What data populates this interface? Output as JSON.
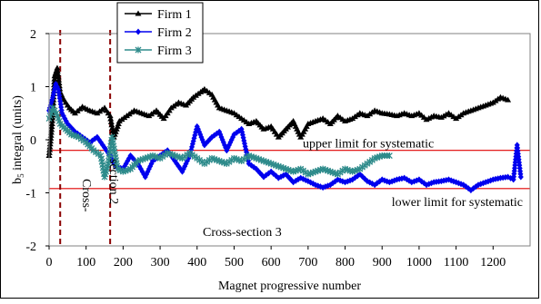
{
  "chart_data": {
    "type": "line",
    "xlabel": "Magnet progressive number",
    "ylabel": "b",
    "ylabel_sub": "5",
    "ylabel_rest": " integral (units)",
    "xlim": [
      0,
      1300
    ],
    "ylim": [
      -2,
      2
    ],
    "xticks": [
      0,
      100,
      200,
      300,
      400,
      500,
      600,
      700,
      800,
      900,
      1000,
      1100,
      1200
    ],
    "yticks": [
      -2,
      -1,
      0,
      1,
      2
    ],
    "legend": "top-left",
    "grid": false,
    "hlines": [
      {
        "label": "upper limit for systematic",
        "value": -0.2,
        "color": "#e00000"
      },
      {
        "label": "lower limit for systematic",
        "value": -0.92,
        "color": "#e00000"
      }
    ],
    "vlines": [
      {
        "value": 30,
        "color": "#8b0000"
      },
      {
        "value": 165,
        "color": "#8b0000"
      }
    ],
    "annotations": [
      {
        "text": "Cross-",
        "x": 65,
        "y": -0.95
      },
      {
        "text": "section 2",
        "x": 140,
        "y": -1.15
      },
      {
        "text": "Cross-section 3",
        "x": 540,
        "y": -1.6
      }
    ],
    "series": [
      {
        "name": "Firm 1",
        "color": "#000000",
        "marker": "triangle",
        "points": [
          [
            0,
            -0.3
          ],
          [
            8,
            0.3
          ],
          [
            15,
            1.2
          ],
          [
            22,
            1.35
          ],
          [
            30,
            0.9
          ],
          [
            40,
            0.75
          ],
          [
            55,
            0.6
          ],
          [
            70,
            0.5
          ],
          [
            90,
            0.62
          ],
          [
            110,
            0.55
          ],
          [
            130,
            0.5
          ],
          [
            150,
            0.6
          ],
          [
            165,
            0.45
          ],
          [
            175,
            0.05
          ],
          [
            190,
            0.35
          ],
          [
            210,
            0.45
          ],
          [
            230,
            0.55
          ],
          [
            250,
            0.5
          ],
          [
            270,
            0.45
          ],
          [
            290,
            0.55
          ],
          [
            310,
            0.4
          ],
          [
            330,
            0.6
          ],
          [
            350,
            0.7
          ],
          [
            370,
            0.65
          ],
          [
            390,
            0.8
          ],
          [
            410,
            0.9
          ],
          [
            420,
            0.95
          ],
          [
            440,
            0.85
          ],
          [
            460,
            0.6
          ],
          [
            480,
            0.55
          ],
          [
            500,
            0.5
          ],
          [
            520,
            0.4
          ],
          [
            540,
            0.3
          ],
          [
            560,
            0.35
          ],
          [
            580,
            0.2
          ],
          [
            600,
            0.25
          ],
          [
            620,
            0.05
          ],
          [
            640,
            0.2
          ],
          [
            660,
            0.35
          ],
          [
            680,
            0.05
          ],
          [
            700,
            0.3
          ],
          [
            720,
            0.35
          ],
          [
            740,
            0.4
          ],
          [
            760,
            0.3
          ],
          [
            780,
            0.45
          ],
          [
            800,
            0.35
          ],
          [
            820,
            0.4
          ],
          [
            840,
            0.5
          ],
          [
            860,
            0.45
          ],
          [
            880,
            0.55
          ],
          [
            900,
            0.5
          ],
          [
            920,
            0.48
          ],
          [
            940,
            0.45
          ],
          [
            960,
            0.5
          ],
          [
            980,
            0.45
          ],
          [
            1000,
            0.5
          ],
          [
            1020,
            0.38
          ],
          [
            1040,
            0.45
          ],
          [
            1060,
            0.42
          ],
          [
            1080,
            0.5
          ],
          [
            1100,
            0.4
          ],
          [
            1120,
            0.5
          ],
          [
            1140,
            0.55
          ],
          [
            1160,
            0.6
          ],
          [
            1180,
            0.65
          ],
          [
            1200,
            0.7
          ],
          [
            1220,
            0.8
          ],
          [
            1240,
            0.75
          ]
        ]
      },
      {
        "name": "Firm 2",
        "color": "#0000ee",
        "marker": "diamond",
        "points": [
          [
            0,
            0.55
          ],
          [
            10,
            0.8
          ],
          [
            18,
            1.05
          ],
          [
            25,
            0.95
          ],
          [
            35,
            0.5
          ],
          [
            50,
            0.3
          ],
          [
            70,
            0.15
          ],
          [
            90,
            0.05
          ],
          [
            110,
            -0.05
          ],
          [
            130,
            0.05
          ],
          [
            150,
            -0.15
          ],
          [
            165,
            -0.3
          ],
          [
            180,
            -0.5
          ],
          [
            200,
            -0.55
          ],
          [
            220,
            -0.3
          ],
          [
            240,
            -0.45
          ],
          [
            260,
            -0.7
          ],
          [
            280,
            -0.4
          ],
          [
            300,
            -0.3
          ],
          [
            320,
            -0.2
          ],
          [
            340,
            -0.4
          ],
          [
            360,
            -0.6
          ],
          [
            380,
            -0.3
          ],
          [
            400,
            0.25
          ],
          [
            420,
            -0.1
          ],
          [
            440,
            0.05
          ],
          [
            460,
            0.15
          ],
          [
            480,
            -0.2
          ],
          [
            500,
            0.1
          ],
          [
            520,
            0.2
          ],
          [
            540,
            -0.45
          ],
          [
            560,
            -0.55
          ],
          [
            580,
            -0.7
          ],
          [
            600,
            -0.6
          ],
          [
            620,
            -0.72
          ],
          [
            640,
            -0.65
          ],
          [
            660,
            -0.8
          ],
          [
            680,
            -0.72
          ],
          [
            700,
            -0.78
          ],
          [
            720,
            -0.85
          ],
          [
            740,
            -0.9
          ],
          [
            760,
            -0.85
          ],
          [
            780,
            -0.75
          ],
          [
            800,
            -0.8
          ],
          [
            820,
            -0.75
          ],
          [
            840,
            -0.65
          ],
          [
            860,
            -0.78
          ],
          [
            880,
            -0.85
          ],
          [
            900,
            -0.75
          ],
          [
            920,
            -0.8
          ],
          [
            940,
            -0.75
          ],
          [
            960,
            -0.72
          ],
          [
            980,
            -0.8
          ],
          [
            1000,
            -0.75
          ],
          [
            1020,
            -0.85
          ],
          [
            1040,
            -0.8
          ],
          [
            1060,
            -0.78
          ],
          [
            1080,
            -0.75
          ],
          [
            1100,
            -0.8
          ],
          [
            1120,
            -0.85
          ],
          [
            1140,
            -0.95
          ],
          [
            1160,
            -0.85
          ],
          [
            1180,
            -0.8
          ],
          [
            1200,
            -0.75
          ],
          [
            1220,
            -0.72
          ],
          [
            1240,
            -0.7
          ],
          [
            1255,
            -0.75
          ],
          [
            1265,
            -0.1
          ],
          [
            1275,
            -0.7
          ]
        ]
      },
      {
        "name": "Firm 3",
        "color": "#2e8b8b",
        "marker": "star",
        "points": [
          [
            0,
            0.4
          ],
          [
            10,
            0.6
          ],
          [
            20,
            0.5
          ],
          [
            30,
            0.3
          ],
          [
            45,
            0.2
          ],
          [
            60,
            0.1
          ],
          [
            80,
            0.05
          ],
          [
            100,
            -0.05
          ],
          [
            120,
            -0.2
          ],
          [
            140,
            -0.3
          ],
          [
            150,
            -0.7
          ],
          [
            160,
            -0.45
          ],
          [
            170,
            0.05
          ],
          [
            185,
            -0.55
          ],
          [
            200,
            -0.6
          ],
          [
            220,
            -0.55
          ],
          [
            240,
            -0.4
          ],
          [
            260,
            -0.35
          ],
          [
            280,
            -0.3
          ],
          [
            300,
            -0.35
          ],
          [
            320,
            -0.25
          ],
          [
            340,
            -0.3
          ],
          [
            360,
            -0.35
          ],
          [
            380,
            -0.25
          ],
          [
            400,
            -0.35
          ],
          [
            420,
            -0.45
          ],
          [
            440,
            -0.35
          ],
          [
            460,
            -0.4
          ],
          [
            480,
            -0.45
          ],
          [
            500,
            -0.35
          ],
          [
            520,
            -0.4
          ],
          [
            540,
            -0.3
          ],
          [
            560,
            -0.35
          ],
          [
            580,
            -0.4
          ],
          [
            600,
            -0.45
          ],
          [
            620,
            -0.5
          ],
          [
            640,
            -0.55
          ],
          [
            660,
            -0.6
          ],
          [
            680,
            -0.55
          ],
          [
            700,
            -0.65
          ],
          [
            720,
            -0.6
          ],
          [
            740,
            -0.55
          ],
          [
            760,
            -0.6
          ],
          [
            780,
            -0.65
          ],
          [
            800,
            -0.55
          ],
          [
            820,
            -0.6
          ],
          [
            840,
            -0.55
          ],
          [
            860,
            -0.45
          ],
          [
            880,
            -0.35
          ],
          [
            900,
            -0.3
          ],
          [
            920,
            -0.3
          ]
        ]
      }
    ]
  }
}
